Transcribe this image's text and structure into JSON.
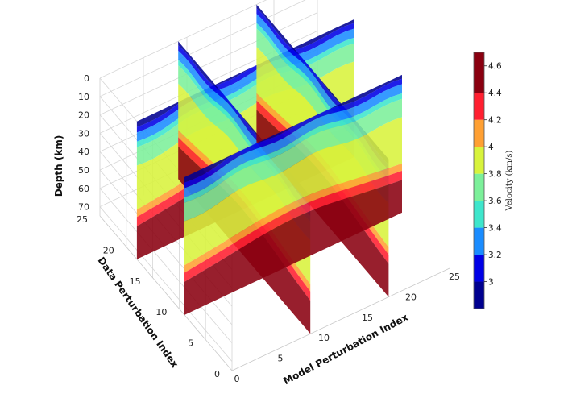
{
  "chart_data": {
    "type": "3d-fence-slices",
    "title": "",
    "z_axis": {
      "label": "Depth (km)",
      "ticks": [
        0,
        10,
        20,
        30,
        40,
        50,
        60,
        70
      ],
      "range": [
        0,
        75
      ],
      "reversed": true
    },
    "y_axis": {
      "label": "Data Perturbation Index",
      "ticks": [
        0,
        5,
        10,
        15,
        20,
        25
      ],
      "range": [
        0,
        25
      ]
    },
    "x_axis": {
      "label": "Model Perturbation Index",
      "ticks": [
        0,
        5,
        10,
        15,
        20,
        25
      ],
      "range": [
        0,
        25
      ]
    },
    "slices": [
      {
        "orientation": "constant-y",
        "index": 18
      },
      {
        "orientation": "constant-y",
        "index": 9
      },
      {
        "orientation": "constant-x",
        "index": 9
      },
      {
        "orientation": "constant-x",
        "index": 18
      }
    ],
    "layers": [
      {
        "top": 0,
        "bottom": 3,
        "velocity": 2.9
      },
      {
        "top": 3,
        "bottom": 6,
        "velocity": 3.1
      },
      {
        "top": 6,
        "bottom": 11,
        "velocity": 3.3
      },
      {
        "top": 11,
        "bottom": 14,
        "velocity": 3.5
      },
      {
        "top": 14,
        "bottom": 24,
        "velocity": 3.65
      },
      {
        "top": 24,
        "bottom": 48,
        "velocity": 3.85
      },
      {
        "top": 48,
        "bottom": 52,
        "velocity": 4.15
      },
      {
        "top": 52,
        "bottom": 57,
        "velocity": 4.35
      },
      {
        "top": 57,
        "bottom": 75,
        "velocity": 4.6
      }
    ],
    "colorbar": {
      "label": "Velocity (km/s)",
      "ticks": [
        "3",
        "3.2",
        "3.4",
        "3.6",
        "3.8",
        "4",
        "4.2",
        "4.4",
        "4.6"
      ],
      "range": [
        2.8,
        4.7
      ],
      "bands": [
        {
          "from": 2.8,
          "to": 3.0,
          "color": "#00008f"
        },
        {
          "from": 3.0,
          "to": 3.2,
          "color": "#0000e6"
        },
        {
          "from": 3.2,
          "to": 3.4,
          "color": "#1a8cff"
        },
        {
          "from": 3.4,
          "to": 3.6,
          "color": "#3ee6cc"
        },
        {
          "from": 3.6,
          "to": 3.8,
          "color": "#7cf09a"
        },
        {
          "from": 3.8,
          "to": 4.0,
          "color": "#d8f33c"
        },
        {
          "from": 4.0,
          "to": 4.2,
          "color": "#ffa033"
        },
        {
          "from": 4.2,
          "to": 4.4,
          "color": "#ff1f30"
        },
        {
          "from": 4.4,
          "to": 4.7,
          "color": "#8a0010"
        }
      ]
    },
    "grid": true
  }
}
